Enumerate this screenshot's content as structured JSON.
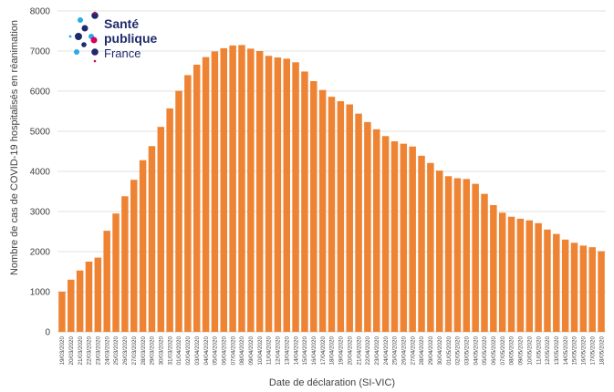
{
  "logo": {
    "line1": "Santé",
    "line2": "publique",
    "line3": "France",
    "colors": {
      "navy": "#1e2a6b",
      "cyan": "#29abe2",
      "magenta": "#d6005d"
    }
  },
  "chart_data": {
    "type": "bar",
    "title": "",
    "xlabel": "Date de déclaration (SI-VIC)",
    "ylabel": "Nombre de cas de COVID-19 hospitalisés en réanimation",
    "ylim": [
      0,
      8000
    ],
    "yticks": [
      0,
      1000,
      2000,
      3000,
      4000,
      5000,
      6000,
      7000,
      8000
    ],
    "grid": true,
    "bar_color": "#ee8433",
    "categories": [
      "19/03/2020",
      "20/03/2020",
      "21/03/2020",
      "22/03/2020",
      "23/03/2020",
      "24/03/2020",
      "25/03/2020",
      "26/03/2020",
      "27/03/2020",
      "28/03/2020",
      "29/03/2020",
      "30/03/2020",
      "31/03/2020",
      "01/04/2020",
      "02/04/2020",
      "03/04/2020",
      "04/04/2020",
      "05/04/2020",
      "06/04/2020",
      "07/04/2020",
      "08/04/2020",
      "09/04/2020",
      "10/04/2020",
      "11/04/2020",
      "12/04/2020",
      "13/04/2020",
      "14/04/2020",
      "15/04/2020",
      "16/04/2020",
      "17/04/2020",
      "18/04/2020",
      "19/04/2020",
      "20/04/2020",
      "21/04/2020",
      "22/04/2020",
      "23/04/2020",
      "24/04/2020",
      "25/04/2020",
      "26/04/2020",
      "27/04/2020",
      "28/04/2020",
      "29/04/2020",
      "30/04/2020",
      "01/05/2020",
      "02/05/2020",
      "03/05/2020",
      "04/05/2020",
      "05/05/2020",
      "06/05/2020",
      "07/05/2020",
      "08/05/2020",
      "09/05/2020",
      "10/05/2020",
      "11/05/2020",
      "12/05/2020",
      "13/05/2020",
      "14/05/2020",
      "15/05/2020",
      "16/05/2020",
      "17/05/2020",
      "18/05/2020"
    ],
    "values": [
      1000,
      1300,
      1530,
      1750,
      1850,
      2520,
      2950,
      3380,
      3790,
      4280,
      4630,
      5110,
      5570,
      6010,
      6400,
      6660,
      6850,
      6990,
      7070,
      7140,
      7150,
      7060,
      7000,
      6880,
      6840,
      6810,
      6720,
      6490,
      6250,
      6030,
      5860,
      5750,
      5670,
      5440,
      5230,
      5050,
      4880,
      4750,
      4690,
      4620,
      4390,
      4210,
      4020,
      3880,
      3830,
      3810,
      3690,
      3440,
      3160,
      2970,
      2870,
      2820,
      2780,
      2710,
      2550,
      2440,
      2300,
      2220,
      2150,
      2110,
      2010
    ]
  }
}
